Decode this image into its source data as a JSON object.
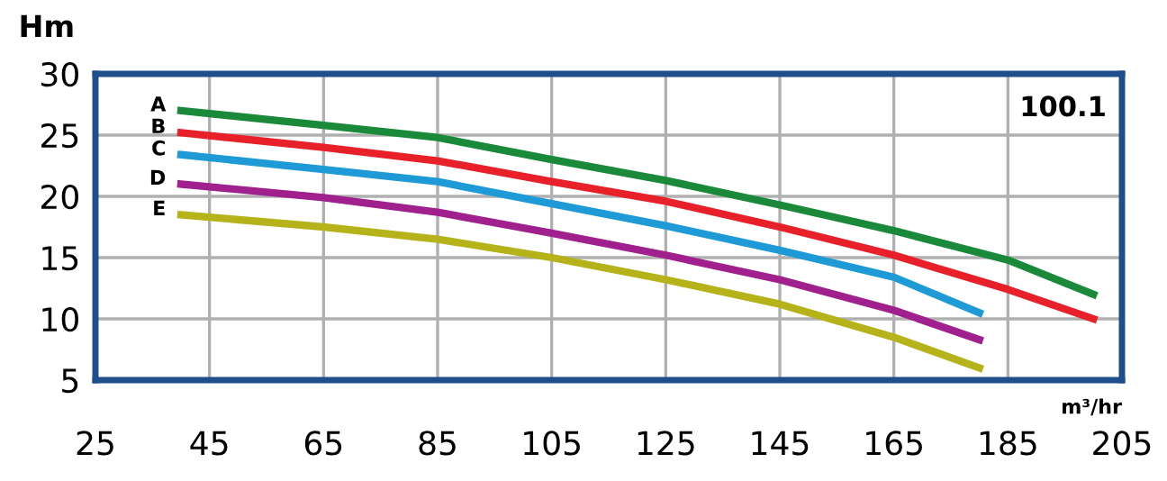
{
  "chart_data": {
    "type": "line",
    "ylabel": "Hm",
    "xlabel": "m³/hr",
    "annotations": [
      "100.1"
    ],
    "xlim": [
      25,
      205
    ],
    "xticks": [
      25,
      45,
      65,
      85,
      105,
      125,
      145,
      165,
      185,
      205
    ],
    "ylim": [
      5,
      30
    ],
    "yticks": [
      5,
      10,
      15,
      20,
      25,
      30
    ],
    "grid": true,
    "legend": false,
    "marker": "none",
    "line_style": "solid",
    "series": [
      {
        "name": "A",
        "color": "#1a8a3a",
        "x": [
          40,
          65,
          85,
          105,
          125,
          145,
          165,
          185,
          200
        ],
        "values": [
          27,
          25.8,
          24.8,
          23,
          21.3,
          19.3,
          17.2,
          14.8,
          12
        ]
      },
      {
        "name": "B",
        "color": "#e8202a",
        "x": [
          40,
          65,
          85,
          105,
          125,
          145,
          165,
          185,
          200
        ],
        "values": [
          25.2,
          24,
          22.9,
          21.2,
          19.6,
          17.5,
          15.2,
          12.4,
          10
        ]
      },
      {
        "name": "C",
        "color": "#1e9ad6",
        "x": [
          40,
          65,
          85,
          105,
          125,
          145,
          165,
          180
        ],
        "values": [
          23.4,
          22.2,
          21.2,
          19.4,
          17.6,
          15.6,
          13.4,
          10.5
        ]
      },
      {
        "name": "D",
        "color": "#a0208e",
        "x": [
          40,
          65,
          85,
          105,
          125,
          145,
          165,
          180
        ],
        "values": [
          21,
          19.9,
          18.7,
          17,
          15.2,
          13.2,
          10.7,
          8.3
        ]
      },
      {
        "name": "E",
        "color": "#b5b21a",
        "x": [
          40,
          65,
          85,
          105,
          125,
          145,
          165,
          180
        ],
        "values": [
          18.5,
          17.5,
          16.5,
          15,
          13.2,
          11.2,
          8.5,
          6
        ]
      }
    ]
  }
}
